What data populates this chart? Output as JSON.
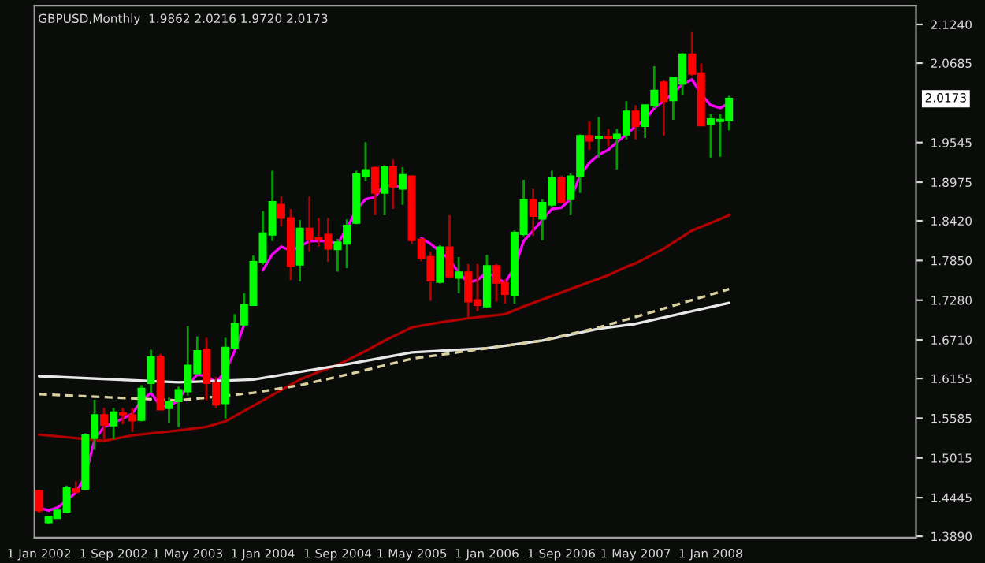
{
  "chart_data": {
    "type": "candlestick",
    "title": "GBPUSD,Monthly  1.9862 2.0216 1.9720 2.0173",
    "x": [
      "2002-01",
      "2002-02",
      "2002-03",
      "2002-04",
      "2002-05",
      "2002-06",
      "2002-07",
      "2002-08",
      "2002-09",
      "2002-10",
      "2002-11",
      "2002-12",
      "2003-01",
      "2003-02",
      "2003-03",
      "2003-04",
      "2003-05",
      "2003-06",
      "2003-07",
      "2003-08",
      "2003-09",
      "2003-10",
      "2003-11",
      "2003-12",
      "2004-01",
      "2004-02",
      "2004-03",
      "2004-04",
      "2004-05",
      "2004-06",
      "2004-07",
      "2004-08",
      "2004-09",
      "2004-10",
      "2004-11",
      "2004-12",
      "2005-01",
      "2005-02",
      "2005-03",
      "2005-04",
      "2005-05",
      "2005-06",
      "2005-07",
      "2005-08",
      "2005-09",
      "2005-10",
      "2005-11",
      "2005-12",
      "2006-01",
      "2006-02",
      "2006-03",
      "2006-04",
      "2006-05",
      "2006-06",
      "2006-07",
      "2006-08",
      "2006-09",
      "2006-10",
      "2006-11",
      "2006-12",
      "2007-01",
      "2007-02",
      "2007-03",
      "2007-04",
      "2007-05",
      "2007-06",
      "2007-07",
      "2007-08",
      "2007-09",
      "2007-10",
      "2007-11",
      "2007-12",
      "2008-01",
      "2008-02",
      "2008-03"
    ],
    "ohlc": [
      [
        1.454,
        1.456,
        1.423,
        1.426
      ],
      [
        1.409,
        1.418,
        1.407,
        1.417
      ],
      [
        1.415,
        1.428,
        1.414,
        1.426
      ],
      [
        1.424,
        1.462,
        1.422,
        1.458
      ],
      [
        1.457,
        1.468,
        1.451,
        1.453
      ],
      [
        1.457,
        1.537,
        1.455,
        1.534
      ],
      [
        1.53,
        1.585,
        1.513,
        1.563
      ],
      [
        1.563,
        1.573,
        1.528,
        1.549
      ],
      [
        1.548,
        1.573,
        1.528,
        1.567
      ],
      [
        1.566,
        1.573,
        1.55,
        1.564
      ],
      [
        1.563,
        1.573,
        1.539,
        1.555
      ],
      [
        1.556,
        1.606,
        1.554,
        1.601
      ],
      [
        1.609,
        1.657,
        1.595,
        1.646
      ],
      [
        1.646,
        1.651,
        1.571,
        1.571
      ],
      [
        1.573,
        1.588,
        1.552,
        1.582
      ],
      [
        1.583,
        1.604,
        1.546,
        1.599
      ],
      [
        1.597,
        1.691,
        1.591,
        1.634
      ],
      [
        1.623,
        1.676,
        1.621,
        1.655
      ],
      [
        1.657,
        1.674,
        1.584,
        1.609
      ],
      [
        1.609,
        1.618,
        1.573,
        1.578
      ],
      [
        1.58,
        1.674,
        1.558,
        1.66
      ],
      [
        1.66,
        1.708,
        1.658,
        1.694
      ],
      [
        1.693,
        1.738,
        1.691,
        1.721
      ],
      [
        1.721,
        1.792,
        1.72,
        1.783
      ],
      [
        1.783,
        1.856,
        1.779,
        1.824
      ],
      [
        1.822,
        1.914,
        1.813,
        1.869
      ],
      [
        1.865,
        1.877,
        1.834,
        1.846
      ],
      [
        1.846,
        1.859,
        1.757,
        1.777
      ],
      [
        1.779,
        1.843,
        1.755,
        1.831
      ],
      [
        1.831,
        1.877,
        1.798,
        1.816
      ],
      [
        1.818,
        1.846,
        1.805,
        1.815
      ],
      [
        1.822,
        1.846,
        1.783,
        1.802
      ],
      [
        1.801,
        1.816,
        1.769,
        1.811
      ],
      [
        1.809,
        1.844,
        1.774,
        1.835
      ],
      [
        1.839,
        1.914,
        1.837,
        1.909
      ],
      [
        1.906,
        1.955,
        1.899,
        1.915
      ],
      [
        1.918,
        1.92,
        1.85,
        1.882
      ],
      [
        1.882,
        1.922,
        1.85,
        1.919
      ],
      [
        1.919,
        1.93,
        1.859,
        1.891
      ],
      [
        1.888,
        1.919,
        1.865,
        1.908
      ],
      [
        1.906,
        1.907,
        1.809,
        1.814
      ],
      [
        1.815,
        1.817,
        1.784,
        1.788
      ],
      [
        1.79,
        1.798,
        1.727,
        1.756
      ],
      [
        1.754,
        1.807,
        1.752,
        1.804
      ],
      [
        1.804,
        1.85,
        1.76,
        1.762
      ],
      [
        1.76,
        1.79,
        1.738,
        1.768
      ],
      [
        1.768,
        1.78,
        1.703,
        1.726
      ],
      [
        1.728,
        1.78,
        1.712,
        1.721
      ],
      [
        1.719,
        1.793,
        1.717,
        1.777
      ],
      [
        1.777,
        1.78,
        1.726,
        1.753
      ],
      [
        1.753,
        1.758,
        1.723,
        1.737
      ],
      [
        1.735,
        1.828,
        1.723,
        1.825
      ],
      [
        1.823,
        1.901,
        1.82,
        1.872
      ],
      [
        1.872,
        1.888,
        1.82,
        1.849
      ],
      [
        1.845,
        1.873,
        1.814,
        1.868
      ],
      [
        1.865,
        1.914,
        1.862,
        1.903
      ],
      [
        1.903,
        1.907,
        1.867,
        1.869
      ],
      [
        1.873,
        1.91,
        1.85,
        1.906
      ],
      [
        1.906,
        1.966,
        1.882,
        1.964
      ],
      [
        1.964,
        1.985,
        1.944,
        1.957
      ],
      [
        1.961,
        1.991,
        1.933,
        1.963
      ],
      [
        1.963,
        1.974,
        1.949,
        1.961
      ],
      [
        1.961,
        1.974,
        1.916,
        1.966
      ],
      [
        1.966,
        2.014,
        1.959,
        1.999
      ],
      [
        1.999,
        2.008,
        1.959,
        1.978
      ],
      [
        1.978,
        2.008,
        1.961,
        2.008
      ],
      [
        2.008,
        2.064,
        2.004,
        2.029
      ],
      [
        2.041,
        2.044,
        1.964,
        2.014
      ],
      [
        2.015,
        2.047,
        1.987,
        2.047
      ],
      [
        2.039,
        2.083,
        2.023,
        2.081
      ],
      [
        2.081,
        2.114,
        2.049,
        2.053
      ],
      [
        2.054,
        2.068,
        1.979,
        1.979
      ],
      [
        1.981,
        1.996,
        1.933,
        1.988
      ],
      [
        1.985,
        1.996,
        1.934,
        1.987
      ],
      [
        1.9862,
        2.0216,
        1.972,
        2.0173
      ]
    ],
    "series": [
      {
        "type": "line",
        "color": "#ff00ff",
        "values": [
          1.43,
          1.426,
          1.43,
          1.44,
          1.452,
          1.475,
          1.528,
          1.546,
          1.552,
          1.558,
          1.565,
          1.584,
          1.595,
          1.576,
          1.576,
          1.584,
          1.606,
          1.621,
          1.619,
          1.61,
          1.625,
          1.655,
          1.693,
          null,
          1.771,
          1.794,
          1.805,
          1.799,
          1.805,
          1.813,
          1.813,
          1.813,
          1.809,
          1.831,
          1.858,
          1.873,
          1.876,
          1.894,
          1.892,
          1.891,
          null,
          1.817,
          1.809,
          1.798,
          1.786,
          1.768,
          1.753,
          1.757,
          1.768,
          1.76,
          1.753,
          1.775,
          1.813,
          1.828,
          1.843,
          1.859,
          1.861,
          1.873,
          1.907,
          1.925,
          1.937,
          1.944,
          1.955,
          1.966,
          1.978,
          1.987,
          2.004,
          2.014,
          2.026,
          2.038,
          2.045,
          2.024,
          2.008,
          2.004,
          2.011
        ]
      },
      {
        "type": "line",
        "color": "#b00000",
        "x": [
          "2002-01",
          "2002-08",
          "2002-11",
          "2003-04",
          "2003-07",
          "2003-09",
          "2003-11",
          "2004-01",
          "2004-03",
          "2004-05",
          "2004-07",
          "2004-09",
          "2004-12",
          "2005-02",
          "2005-05",
          "2005-08",
          "2005-11",
          "2006-03",
          "2006-05",
          "2006-08",
          "2006-11",
          "2007-02",
          "2007-04",
          "2007-05",
          "2007-08",
          "2007-11",
          "2008-01",
          "2008-03"
        ],
        "values": [
          1.535,
          1.526,
          1.534,
          1.541,
          1.546,
          1.554,
          1.569,
          1.584,
          1.599,
          1.614,
          1.625,
          1.635,
          1.655,
          1.67,
          1.689,
          1.696,
          1.702,
          1.708,
          1.719,
          1.734,
          1.749,
          1.764,
          1.776,
          1.781,
          1.802,
          1.828,
          1.839,
          1.85
        ]
      },
      {
        "type": "line",
        "color": "#e8e8e8",
        "line_style": "solid",
        "x": [
          "2002-01",
          "2003-04",
          "2003-12",
          "2004-05",
          "2004-10",
          "2005-05",
          "2006-01",
          "2006-07",
          "2007-01",
          "2007-05",
          "2008-03"
        ],
        "values": [
          1.619,
          1.61,
          1.614,
          1.625,
          1.636,
          1.653,
          1.659,
          1.67,
          1.687,
          1.694,
          1.724
        ]
      },
      {
        "type": "line",
        "color": "#d8d0a0",
        "line_style": "dashed",
        "x": [
          "2002-01",
          "2003-04",
          "2003-12",
          "2004-05",
          "2004-10",
          "2005-05",
          "2006-01",
          "2006-07",
          "2007-01",
          "2007-05",
          "2008-03"
        ],
        "values": [
          1.593,
          1.584,
          1.595,
          1.606,
          1.621,
          1.644,
          1.659,
          1.67,
          1.689,
          1.704,
          1.744
        ]
      }
    ],
    "annotations": [
      "2.0173"
    ],
    "xlim": [
      "2001-12-17",
      "2009-11-01"
    ],
    "xticks": [
      {
        "value": "2002-01-01",
        "label": "1 Jan 2002"
      },
      {
        "value": "2002-09-01",
        "label": "1 Sep 2002"
      },
      {
        "value": "2003-05-01",
        "label": "1 May 2003"
      },
      {
        "value": "2004-01-01",
        "label": "1 Jan 2004"
      },
      {
        "value": "2004-09-01",
        "label": "1 Sep 2004"
      },
      {
        "value": "2005-05-01",
        "label": "1 May 2005"
      },
      {
        "value": "2006-01-01",
        "label": "1 Jan 2006"
      },
      {
        "value": "2006-09-01",
        "label": "1 Sep 2006"
      },
      {
        "value": "2007-05-01",
        "label": "1 May 2007"
      },
      {
        "value": "2008-01-01",
        "label": "1 Jan 2008"
      }
    ],
    "ylim": [
      1.387,
      2.151
    ],
    "yticks": [
      {
        "value": 1.389,
        "label": "1.3890"
      },
      {
        "value": 1.4445,
        "label": "1.4445"
      },
      {
        "value": 1.5015,
        "label": "1.5015"
      },
      {
        "value": 1.5585,
        "label": "1.5585"
      },
      {
        "value": 1.6155,
        "label": "1.6155"
      },
      {
        "value": 1.671,
        "label": "1.6710"
      },
      {
        "value": 1.728,
        "label": "1.7280"
      },
      {
        "value": 1.785,
        "label": "1.7850"
      },
      {
        "value": 1.842,
        "label": "1.8420"
      },
      {
        "value": 1.8975,
        "label": "1.8975"
      },
      {
        "value": 1.9545,
        "label": "1.9545"
      },
      {
        "value": 2.0685,
        "label": "2.0685"
      },
      {
        "value": 2.124,
        "label": "2.1240"
      }
    ],
    "grid": false,
    "legend": false
  }
}
